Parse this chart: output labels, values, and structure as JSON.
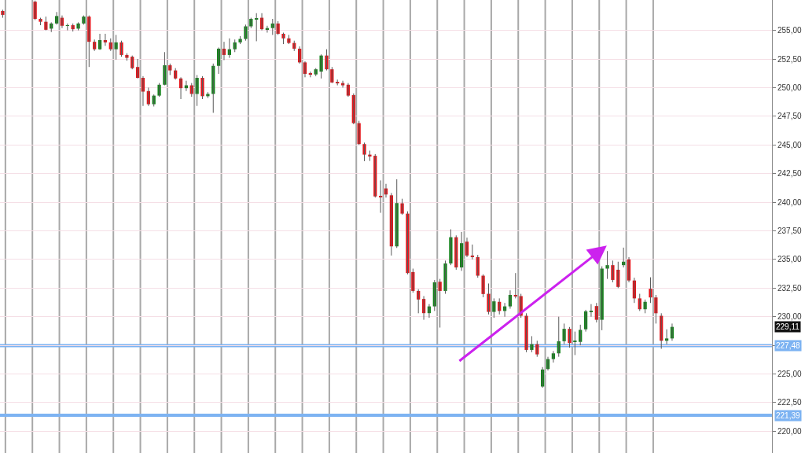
{
  "chart_data": {
    "type": "candlestick",
    "categories": [
      null,
      null,
      null,
      null,
      null,
      null,
      null,
      null,
      null,
      null,
      null,
      null,
      null,
      null,
      null,
      null,
      null,
      null,
      null,
      null,
      null,
      null,
      null,
      null,
      null,
      null,
      null,
      null,
      null,
      null,
      null,
      null,
      null,
      null,
      null,
      null,
      null,
      null,
      null,
      null,
      null,
      null,
      null,
      null,
      null,
      null,
      null,
      null,
      null,
      null,
      null,
      null,
      null,
      null,
      null,
      null,
      null,
      null,
      null,
      null,
      null,
      null,
      null,
      null,
      null,
      null,
      null,
      null,
      null,
      null,
      null,
      null,
      null,
      null,
      null,
      null,
      null,
      null,
      null,
      null,
      null,
      null,
      null,
      null,
      null,
      null,
      null,
      null,
      null,
      null,
      null,
      null,
      null,
      null,
      null,
      null,
      null,
      null,
      null,
      null,
      null,
      null,
      null,
      null,
      null,
      null,
      null,
      null,
      null,
      null,
      null,
      null,
      null,
      null,
      null,
      null,
      null,
      null,
      null,
      null,
      null,
      null,
      null,
      null,
      null,
      null,
      null,
      null,
      null,
      null,
      null,
      null,
      null,
      null,
      null,
      null,
      null,
      null,
      null,
      null,
      null,
      null,
      null
    ],
    "ohlc": [
      [
        256.69,
        256.8,
        256.1,
        256.35
      ],
      null,
      null,
      null,
      null,
      null,
      [
        257.5,
        257.6,
        255.9,
        256.0
      ],
      [
        256.0,
        256.1,
        255.45,
        255.75
      ],
      [
        255.75,
        256.2,
        255.0,
        255.05
      ],
      [
        255.15,
        255.7,
        254.85,
        255.6
      ],
      [
        255.6,
        256.6,
        255.5,
        256.25
      ],
      [
        256.1,
        256.3,
        255.2,
        255.4
      ],
      [
        255.4,
        255.6,
        255.0,
        255.45
      ],
      [
        255.45,
        255.6,
        254.9,
        255.1
      ],
      [
        255.15,
        255.7,
        255.0,
        255.6
      ],
      [
        255.6,
        256.3,
        255.5,
        256.2
      ],
      [
        256.2,
        256.3,
        251.8,
        254.0
      ],
      [
        254.0,
        254.2,
        253.2,
        253.35
      ],
      [
        253.35,
        254.7,
        253.3,
        254.15
      ],
      [
        254.15,
        254.7,
        253.65,
        253.95
      ],
      [
        253.95,
        254.3,
        253.2,
        253.35
      ],
      [
        253.35,
        254.6,
        252.45,
        253.95
      ],
      [
        253.95,
        254.1,
        252.7,
        252.85
      ],
      [
        252.85,
        253.0,
        252.35,
        252.6
      ],
      [
        252.7,
        252.8,
        251.6,
        251.7
      ],
      [
        251.8,
        252.5,
        250.8,
        250.85
      ],
      [
        250.85,
        251.0,
        248.4,
        249.65
      ],
      [
        249.7,
        250.0,
        248.4,
        248.55
      ],
      [
        248.55,
        249.4,
        248.35,
        249.3
      ],
      [
        249.3,
        250.4,
        249.2,
        250.25
      ],
      [
        250.25,
        253.1,
        250.2,
        251.95
      ],
      [
        251.95,
        252.1,
        251.1,
        251.5
      ],
      [
        251.5,
        251.7,
        250.7,
        250.8
      ],
      [
        250.8,
        250.9,
        249.0,
        249.95
      ],
      [
        249.95,
        250.6,
        249.7,
        250.2
      ],
      [
        250.2,
        250.4,
        249.2,
        249.45
      ],
      [
        249.45,
        251.1,
        248.4,
        250.85
      ],
      [
        250.85,
        251.0,
        249.0,
        249.25
      ],
      [
        249.25,
        249.6,
        249.1,
        249.45
      ],
      [
        249.45,
        252.1,
        247.8,
        251.9
      ],
      [
        251.9,
        253.5,
        251.2,
        253.4
      ],
      [
        253.4,
        254.0,
        252.4,
        252.85
      ],
      [
        252.85,
        254.3,
        252.6,
        253.35
      ],
      [
        253.35,
        254.2,
        253.1,
        253.95
      ],
      [
        253.95,
        254.5,
        253.8,
        254.25
      ],
      [
        254.25,
        255.5,
        254.1,
        255.35
      ],
      [
        255.35,
        256.1,
        255.2,
        256.0
      ],
      [
        256.0,
        256.5,
        254.05,
        256.05
      ],
      [
        256.1,
        256.5,
        255.0,
        255.1
      ],
      [
        255.1,
        255.4,
        254.8,
        255.2
      ],
      [
        255.2,
        256.0,
        254.6,
        255.6
      ],
      [
        255.6,
        255.8,
        254.6,
        254.7
      ],
      [
        254.7,
        254.8,
        253.8,
        254.3
      ],
      [
        254.3,
        254.6,
        253.8,
        253.9
      ],
      [
        253.9,
        254.1,
        253.2,
        253.4
      ],
      [
        253.4,
        253.6,
        252.1,
        252.2
      ],
      [
        252.2,
        252.3,
        250.9,
        251.2
      ],
      [
        251.2,
        251.4,
        250.9,
        251.15
      ],
      [
        251.15,
        251.7,
        251.0,
        251.6
      ],
      [
        251.4,
        252.9,
        250.8,
        252.8
      ],
      [
        252.8,
        253.35,
        251.5,
        251.6
      ],
      [
        251.6,
        251.8,
        250.4,
        250.45
      ],
      [
        250.45,
        250.7,
        250.2,
        250.4
      ],
      [
        250.4,
        250.6,
        250.0,
        250.2
      ],
      [
        250.25,
        250.4,
        249.2,
        249.3
      ],
      [
        249.35,
        249.5,
        246.8,
        246.9
      ],
      [
        246.9,
        247.1,
        245.0,
        245.07
      ],
      [
        245.07,
        245.2,
        243.58,
        244.15
      ],
      [
        244.15,
        244.5,
        243.6,
        244.05
      ],
      [
        244.05,
        244.2,
        240.4,
        240.5
      ],
      [
        240.5,
        241.9,
        239.07,
        240.45
      ],
      [
        241.2,
        241.6,
        240.4,
        240.67
      ],
      [
        240.6,
        240.8,
        235.34,
        236.14
      ],
      [
        236.14,
        242.0,
        236.0,
        239.92
      ],
      [
        239.9,
        240.3,
        238.9,
        239.0
      ],
      [
        239.0,
        239.2,
        233.7,
        233.81
      ],
      [
        233.9,
        234.2,
        232.1,
        232.25
      ],
      [
        232.25,
        232.4,
        230.3,
        231.5
      ],
      [
        231.55,
        231.8,
        229.73,
        230.31
      ],
      [
        230.31,
        231.1,
        229.9,
        230.9
      ],
      [
        230.9,
        233.2,
        230.5,
        233.0
      ],
      [
        233.05,
        233.3,
        229.05,
        232.25
      ],
      [
        232.25,
        234.9,
        232.0,
        234.65
      ],
      [
        234.65,
        237.63,
        234.5,
        236.94
      ],
      [
        236.94,
        237.1,
        234.1,
        234.3
      ],
      [
        234.3,
        237.4,
        234.0,
        236.42
      ],
      [
        236.55,
        236.9,
        235.2,
        235.34
      ],
      [
        235.34,
        236.3,
        235.0,
        235.2
      ],
      [
        235.2,
        235.4,
        233.4,
        233.58
      ],
      [
        233.58,
        233.7,
        231.7,
        231.98
      ],
      [
        232.0,
        232.9,
        230.2,
        230.42
      ],
      [
        230.42,
        231.6,
        229.9,
        231.34
      ],
      [
        231.3,
        231.6,
        230.2,
        230.5
      ],
      [
        230.5,
        231.2,
        230.0,
        230.9
      ],
      [
        230.9,
        232.3,
        230.7,
        231.9
      ],
      [
        231.9,
        233.81,
        231.6,
        231.8
      ],
      [
        231.8,
        232.0,
        229.9,
        230.08
      ],
      [
        230.08,
        230.3,
        226.9,
        227.1
      ],
      [
        227.1,
        228.3,
        226.9,
        227.6
      ],
      [
        227.6,
        227.9,
        226.5,
        226.71
      ],
      [
        223.9,
        225.6,
        223.8,
        225.39
      ],
      [
        225.43,
        226.5,
        225.3,
        226.3
      ],
      [
        226.3,
        227.0,
        226.0,
        226.8
      ],
      [
        226.8,
        230.0,
        226.5,
        227.86
      ],
      [
        227.86,
        229.4,
        227.6,
        228.94
      ],
      [
        228.94,
        229.1,
        227.3,
        227.7
      ],
      [
        227.8,
        228.7,
        226.65,
        227.9
      ],
      [
        227.8,
        229.3,
        227.5,
        228.85
      ],
      [
        228.9,
        230.6,
        228.7,
        230.47
      ],
      [
        230.4,
        231.1,
        230.0,
        230.47
      ],
      [
        230.93,
        231.2,
        229.5,
        229.73
      ],
      [
        229.73,
        234.4,
        228.82,
        234.2
      ],
      [
        234.2,
        235.73,
        233.3,
        234.5
      ],
      [
        234.5,
        234.9,
        233.0,
        233.21
      ],
      [
        234.1,
        234.8,
        232.5,
        232.6
      ],
      [
        234.5,
        236.03,
        234.3,
        234.8
      ],
      [
        235.0,
        235.2,
        233.0,
        233.16
      ],
      [
        233.16,
        233.4,
        231.2,
        231.6
      ],
      [
        231.6,
        232.0,
        230.5,
        230.65
      ],
      [
        230.65,
        231.5,
        230.3,
        231.3
      ],
      [
        232.44,
        233.44,
        231.2,
        231.68
      ],
      [
        231.68,
        231.9,
        229.4,
        230.3
      ],
      [
        230.08,
        230.3,
        227.2,
        227.9
      ],
      [
        227.9,
        228.9,
        227.6,
        228.1
      ],
      [
        228.1,
        229.4,
        227.9,
        229.11
      ],
      null,
      null,
      null,
      null,
      null,
      null,
      null,
      null,
      null,
      null,
      null,
      null,
      null,
      null,
      null,
      null,
      null,
      null
    ],
    "colors": [
      "#e5151b",
      null,
      null,
      null,
      null,
      null,
      "#e5151b",
      "#e5151b",
      "#e5151b",
      "#13851b",
      "#13851b",
      "#e5151b",
      "#13851b",
      "#e5151b",
      "#13851b",
      "#13851b",
      "#e5151b",
      "#e5151b",
      "#13851b",
      "#e5151b",
      "#e5151b",
      "#13851b",
      "#e5151b",
      "#e5151b",
      "#e5151b",
      "#e5151b",
      "#e5151b",
      "#e5151b",
      "#13851b",
      "#13851b",
      "#13851b",
      "#e5151b",
      "#e5151b",
      "#e5151b",
      "#13851b",
      "#e5151b",
      "#13851b",
      "#e5151b",
      "#13851b",
      "#13851b",
      "#13851b",
      "#e5151b",
      "#13851b",
      "#13851b",
      "#13851b",
      "#13851b",
      "#13851b",
      "#13851b",
      "#e5151b",
      "#13851b",
      "#13851b",
      "#e5151b",
      "#e5151b",
      "#e5151b",
      "#e5151b",
      "#e5151b",
      "#e5151b",
      "#e5151b",
      "#13851b",
      "#13851b",
      "#e5151b",
      "#e5151b",
      "#e5151b",
      "#e5151b",
      "#e5151b",
      "#e5151b",
      "#e5151b",
      "#e5151b",
      "#e5151b",
      "#e5151b",
      "#e5151b",
      "#e5151b",
      "#e5151b",
      "#13851b",
      "#e5151b",
      "#e5151b",
      "#e5151b",
      "#e5151b",
      "#e5151b",
      "#13851b",
      "#13851b",
      "#e5151b",
      "#13851b",
      "#13851b",
      "#e5151b",
      "#13851b",
      "#e5151b",
      "#e5151b",
      "#e5151b",
      "#e5151b",
      "#e5151b",
      "#13851b",
      "#e5151b",
      "#13851b",
      "#13851b",
      "#e5151b",
      "#e5151b",
      "#e5151b",
      "#13851b",
      "#e5151b",
      "#13851b",
      "#13851b",
      "#13851b",
      "#13851b",
      "#13851b",
      "#e5151b",
      "#13851b",
      "#13851b",
      "#13851b",
      "#13851b",
      "#e5151b",
      "#13851b",
      "#13851b",
      "#e5151b",
      "#e5151b",
      "#13851b",
      "#e5151b",
      "#e5151b",
      "#e5151b",
      "#13851b",
      "#e5151b",
      "#e5151b",
      "#e5151b",
      "#13851b",
      "#13851b",
      null,
      null,
      null,
      null,
      null,
      null,
      null,
      null,
      null,
      null,
      null,
      null,
      null,
      null,
      null,
      null,
      null,
      null
    ],
    "ylim": [
      218.1,
      257.65
    ],
    "yticks": [
      {
        "value": 220,
        "label": "220,00"
      },
      {
        "value": 222.5,
        "label": "222,50"
      },
      {
        "value": 225,
        "label": "225,00"
      },
      {
        "value": 227.5,
        "label": null
      },
      {
        "value": 230,
        "label": "230,00"
      },
      {
        "value": 232.5,
        "label": "232,50"
      },
      {
        "value": 235,
        "label": "235,00"
      },
      {
        "value": 237.5,
        "label": "237,50"
      },
      {
        "value": 240,
        "label": "240,00"
      },
      {
        "value": 242.5,
        "label": "242,50"
      },
      {
        "value": 245,
        "label": "245,00"
      },
      {
        "value": 247.5,
        "label": "247,50"
      },
      {
        "value": 250,
        "label": "250,00"
      },
      {
        "value": 252.5,
        "label": "252,50"
      },
      {
        "value": 255,
        "label": "255,00"
      }
    ],
    "grid": "y",
    "tick_labels": "y",
    "ref_lines": [
      {
        "axis": "y",
        "value": 227.48,
        "label": "227,48",
        "color": "#7db3f2"
      },
      {
        "axis": "y",
        "value": 221.39,
        "label": "221,39",
        "color": "#7db3f2"
      }
    ],
    "annotations": [
      "229,11"
    ]
  }
}
